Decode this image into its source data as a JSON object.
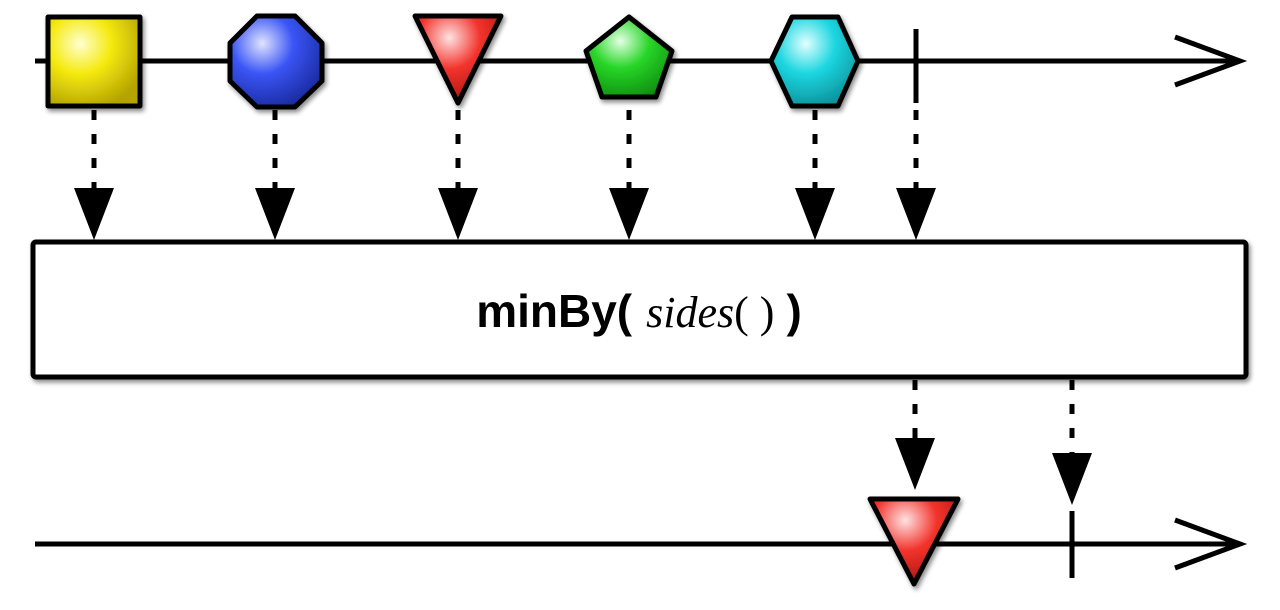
{
  "operator": {
    "name": "minBy(",
    "arg": "sides",
    "arg_parens": "( )",
    "close": ")"
  },
  "source_timeline": {
    "items": [
      {
        "shape": "square",
        "color": "#f2e600",
        "icon": "yellow-square"
      },
      {
        "shape": "octagon",
        "color": "#2f49f0",
        "icon": "blue-octagon"
      },
      {
        "shape": "triangle",
        "color": "#f0231e",
        "icon": "red-triangle"
      },
      {
        "shape": "pentagon",
        "color": "#1ed21e",
        "icon": "green-pentagon"
      },
      {
        "shape": "hexagon",
        "color": "#18d2dc",
        "icon": "cyan-hexagon"
      }
    ],
    "completes": true
  },
  "result_timeline": {
    "items": [
      {
        "shape": "triangle",
        "color": "#f0231e",
        "icon": "red-triangle"
      }
    ],
    "completes": true
  }
}
